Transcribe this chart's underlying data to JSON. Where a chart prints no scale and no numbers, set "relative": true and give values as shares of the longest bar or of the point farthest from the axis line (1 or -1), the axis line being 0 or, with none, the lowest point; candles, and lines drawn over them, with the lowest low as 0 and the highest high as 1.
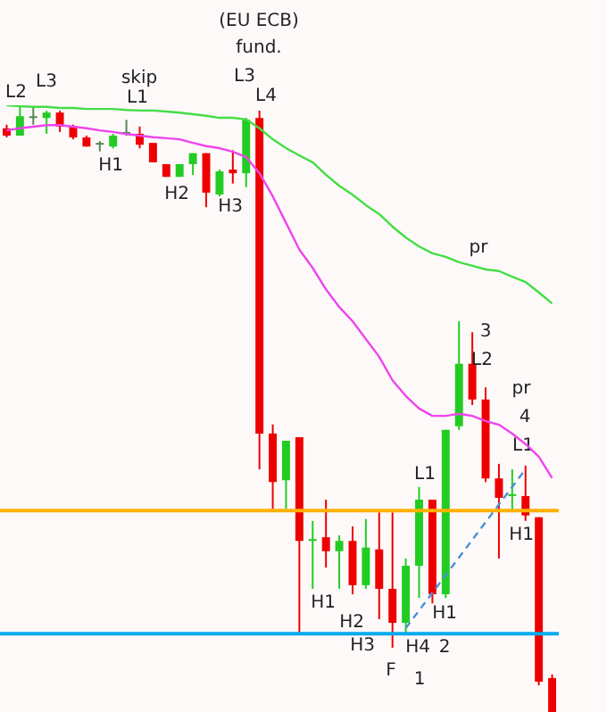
{
  "chart_data": [
    {
      "type": "candlestick",
      "relative": true,
      "categories": [
        null,
        null,
        null,
        null,
        null,
        null,
        null,
        null,
        null,
        null,
        null,
        null,
        null,
        null,
        null,
        null,
        null,
        null,
        null,
        null,
        null,
        null,
        null,
        null,
        null,
        null,
        null,
        null,
        null,
        null,
        null,
        null,
        null,
        null,
        null,
        null,
        null,
        null,
        null,
        null,
        null,
        null
      ],
      "ohlc": [
        [
          0.962,
          0.968,
          0.947,
          0.95
        ],
        [
          0.95,
          1.0,
          0.95,
          0.982
        ],
        [
          0.979,
          0.997,
          0.968,
          0.982
        ],
        [
          0.979,
          0.991,
          0.953,
          0.988
        ],
        [
          0.988,
          0.991,
          0.956,
          0.965
        ],
        [
          0.965,
          0.968,
          0.944,
          0.947
        ],
        [
          0.947,
          0.95,
          0.932,
          0.932
        ],
        [
          0.935,
          0.941,
          0.924,
          0.938
        ],
        [
          0.932,
          0.953,
          0.929,
          0.95
        ],
        [
          0.953,
          0.976,
          0.95,
          0.956
        ],
        [
          0.953,
          0.965,
          0.929,
          0.935
        ],
        [
          0.938,
          0.938,
          0.906,
          0.906
        ],
        [
          0.903,
          0.903,
          0.882,
          0.882
        ],
        [
          0.882,
          0.903,
          0.882,
          0.903
        ],
        [
          0.903,
          0.921,
          0.885,
          0.921
        ],
        [
          0.921,
          0.921,
          0.832,
          0.856
        ],
        [
          0.853,
          0.894,
          0.85,
          0.891
        ],
        [
          0.894,
          0.926,
          0.871,
          0.888
        ],
        [
          0.888,
          0.979,
          0.865,
          0.976
        ],
        [
          0.979,
          0.991,
          0.4,
          0.459
        ],
        [
          0.459,
          0.474,
          0.335,
          0.379
        ],
        [
          0.382,
          0.447,
          0.335,
          0.447
        ],
        [
          0.453,
          0.453,
          0.129,
          0.282
        ],
        [
          0.282,
          0.315,
          0.203,
          0.285
        ],
        [
          0.288,
          0.35,
          0.238,
          0.265
        ],
        [
          0.265,
          0.291,
          0.203,
          0.282
        ],
        [
          0.282,
          0.306,
          0.194,
          0.209
        ],
        [
          0.209,
          0.318,
          0.203,
          0.271
        ],
        [
          0.268,
          0.329,
          0.153,
          0.203
        ],
        [
          0.203,
          0.329,
          0.106,
          0.147
        ],
        [
          0.147,
          0.253,
          0.129,
          0.241
        ],
        [
          0.241,
          0.371,
          0.188,
          0.35
        ],
        [
          0.35,
          0.35,
          0.179,
          0.194
        ],
        [
          0.194,
          0.465,
          0.188,
          0.465
        ],
        [
          0.471,
          0.644,
          0.465,
          0.574
        ],
        [
          0.574,
          0.626,
          0.506,
          0.515
        ],
        [
          0.515,
          0.535,
          0.379,
          0.385
        ],
        [
          0.385,
          0.409,
          0.253,
          0.353
        ],
        [
          0.356,
          0.4,
          0.329,
          0.359
        ],
        [
          0.356,
          0.406,
          0.315,
          0.324
        ],
        [
          0.321,
          0.321,
          0.044,
          0.05
        ],
        [
          0.056,
          0.062,
          0.0,
          0.0
        ]
      ],
      "colors": [
        "#ee0000",
        "#22cc22",
        "#558855",
        "#22cc22",
        "#ee0000",
        "#ee0000",
        "#ee0000",
        "#558855",
        "#22cc22",
        "#558855",
        "#ee0000",
        "#ee0000",
        "#ee0000",
        "#22cc22",
        "#22cc22",
        "#ee0000",
        "#22cc22",
        "#ee0000",
        "#22cc22",
        "#ee0000",
        "#ee0000",
        "#22cc22",
        "#ee0000",
        "#22cc22",
        "#ee0000",
        "#22cc22",
        "#ee0000",
        "#22cc22",
        "#ee0000",
        "#ee0000",
        "#22cc22",
        "#22cc22",
        "#ee0000",
        "#22cc22",
        "#22cc22",
        "#ee0000",
        "#ee0000",
        "#ee0000",
        "#22cc22",
        "#ee0000",
        "#ee0000",
        "#ee0000"
      ],
      "ref_lines": [
        {
          "axis": "y",
          "value": 0.332,
          "color": "#ffb000"
        },
        {
          "axis": "y",
          "value": 0.129,
          "color": "#00aaee"
        }
      ],
      "annotations": [
        "L2",
        "L3",
        "skip",
        "L1",
        "H1",
        "H2",
        "H3",
        "(EU ECB)",
        "fund.",
        "L3",
        "L4",
        "L1",
        "H1",
        "H2",
        "H3",
        "F",
        "H4",
        "1",
        "2",
        "H1",
        "pr",
        "3",
        "L2",
        "pr",
        "4",
        "L1",
        "H1"
      ]
    },
    {
      "type": "line",
      "relative": true,
      "categories": [
        null,
        null,
        null,
        null,
        null,
        null,
        null,
        null,
        null,
        null,
        null,
        null,
        null,
        null,
        null,
        null,
        null,
        null,
        null,
        null,
        null,
        null,
        null,
        null,
        null,
        null,
        null,
        null,
        null,
        null,
        null,
        null,
        null,
        null,
        null,
        null,
        null,
        null,
        null,
        null,
        null,
        null
      ],
      "series": [
        {
          "color": "#44dd44",
          "values": [
            1.0,
            0.998,
            0.997,
            0.997,
            0.995,
            0.995,
            0.993,
            0.993,
            0.993,
            0.991,
            0.99,
            0.99,
            0.988,
            0.986,
            0.983,
            0.98,
            0.976,
            0.976,
            0.973,
            0.956,
            0.935,
            0.918,
            0.904,
            0.891,
            0.867,
            0.846,
            0.829,
            0.809,
            0.792,
            0.768,
            0.747,
            0.73,
            0.717,
            0.71,
            0.7,
            0.693,
            0.686,
            0.683,
            0.672,
            0.662,
            0.642,
            0.621
          ]
        },
        {
          "color": "#ee44ee",
          "values": [
            0.952,
            0.956,
            0.959,
            0.962,
            0.962,
            0.959,
            0.956,
            0.952,
            0.949,
            0.945,
            0.942,
            0.939,
            0.937,
            0.935,
            0.928,
            0.922,
            0.918,
            0.911,
            0.901,
            0.87,
            0.826,
            0.775,
            0.724,
            0.689,
            0.648,
            0.614,
            0.587,
            0.553,
            0.519,
            0.474,
            0.444,
            0.42,
            0.406,
            0.406,
            0.41,
            0.406,
            0.396,
            0.389,
            0.372,
            0.352,
            0.328,
            0.287
          ]
        },
        {
          "color": "#4a90d9",
          "line_style": "dashed",
          "values": [
            null,
            null,
            null,
            null,
            null,
            null,
            null,
            null,
            null,
            null,
            null,
            null,
            null,
            null,
            null,
            null,
            null,
            null,
            null,
            null,
            null,
            null,
            null,
            null,
            null,
            null,
            null,
            null,
            null,
            null,
            0.0,
            null,
            null,
            null,
            null,
            null,
            null,
            null,
            null,
            0.304,
            null,
            null
          ]
        }
      ]
    }
  ]
}
